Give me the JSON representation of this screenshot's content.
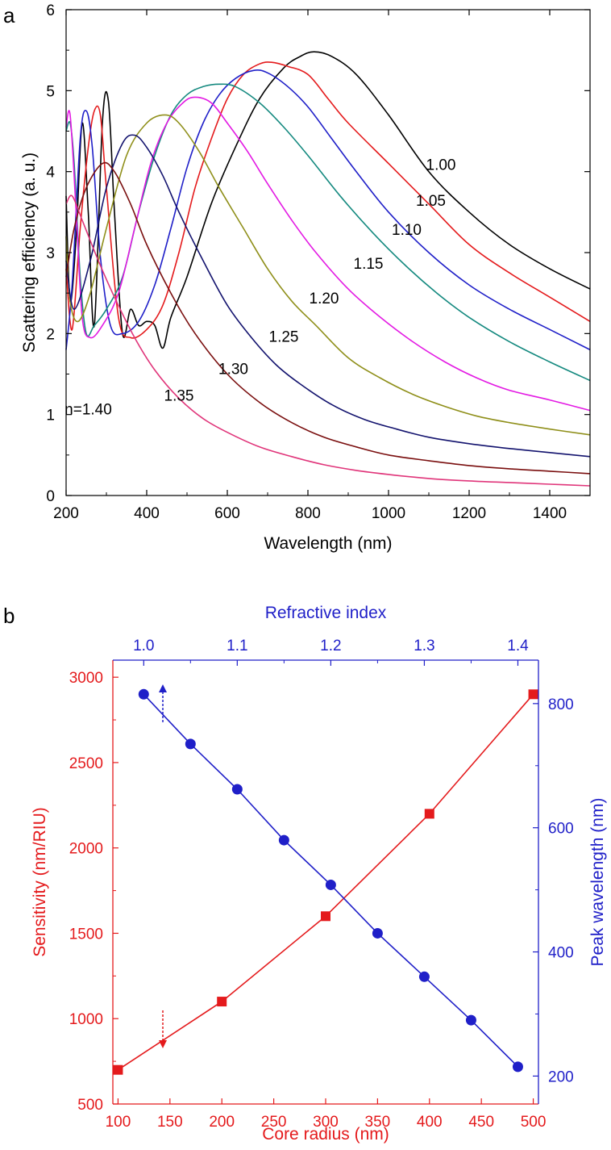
{
  "chart_data": [
    {
      "panel_label": "a",
      "type": "line",
      "title": "",
      "xlabel": "Wavelength (nm)",
      "ylabel": "Scattering efficiency (a. u.)",
      "xlim": [
        200,
        1500
      ],
      "ylim": [
        0,
        6
      ],
      "xticks": [
        200,
        400,
        600,
        800,
        1000,
        1200,
        1400
      ],
      "yticks": [
        0,
        1,
        2,
        3,
        4,
        5,
        6
      ],
      "grid": false,
      "series": [
        {
          "name": "1.00",
          "color": "#000000",
          "x": [
            200,
            210,
            225,
            240,
            255,
            270,
            290,
            305,
            320,
            340,
            360,
            380,
            400,
            420,
            440,
            460,
            500,
            560,
            620,
            680,
            740,
            780,
            815,
            860,
            920,
            1000,
            1100,
            1200,
            1300,
            1400,
            1500
          ],
          "y": [
            3.7,
            2.4,
            3.2,
            4.6,
            3.5,
            2.1,
            4.6,
            4.87,
            3.5,
            2.0,
            2.3,
            2.1,
            2.15,
            2.1,
            1.82,
            2.2,
            2.7,
            3.6,
            4.3,
            4.9,
            5.28,
            5.42,
            5.48,
            5.42,
            5.2,
            4.7,
            4.0,
            3.5,
            3.1,
            2.8,
            2.55
          ]
        },
        {
          "name": "1.05",
          "color": "#e41a1c",
          "x": [
            200,
            215,
            235,
            255,
            270,
            285,
            300,
            330,
            360,
            400,
            440,
            480,
            520,
            560,
            600,
            640,
            680,
            710,
            750,
            800,
            850,
            900,
            1000,
            1100,
            1200,
            1300,
            1400,
            1500
          ],
          "y": [
            2.8,
            2.05,
            3.3,
            4.3,
            4.75,
            4.7,
            3.8,
            2.2,
            1.95,
            2.05,
            2.35,
            3.0,
            3.8,
            4.4,
            4.9,
            5.2,
            5.33,
            5.35,
            5.3,
            5.2,
            4.9,
            4.6,
            4.1,
            3.6,
            3.1,
            2.75,
            2.45,
            2.15
          ]
        },
        {
          "name": "1.10",
          "color": "#1f1fc8",
          "x": [
            200,
            215,
            235,
            250,
            265,
            285,
            310,
            340,
            380,
            420,
            460,
            500,
            540,
            580,
            620,
            665,
            700,
            750,
            800,
            860,
            920,
            1000,
            1100,
            1200,
            1300,
            1400,
            1500
          ],
          "y": [
            1.8,
            2.6,
            4.4,
            4.75,
            4.3,
            2.95,
            2.1,
            2.0,
            2.15,
            2.6,
            3.3,
            4.05,
            4.6,
            4.95,
            5.15,
            5.25,
            5.22,
            5.05,
            4.8,
            4.4,
            4.0,
            3.5,
            3.0,
            2.6,
            2.3,
            2.05,
            1.8
          ]
        },
        {
          "name": "1.15",
          "color": "#14897f",
          "x": [
            200,
            210,
            220,
            235,
            250,
            270,
            300,
            340,
            380,
            420,
            460,
            500,
            540,
            580,
            620,
            680,
            740,
            800,
            880,
            960,
            1040,
            1120,
            1200,
            1300,
            1400,
            1500
          ],
          "y": [
            4.5,
            4.6,
            4.1,
            2.7,
            2.0,
            2.1,
            2.3,
            2.7,
            3.5,
            4.2,
            4.7,
            4.95,
            5.05,
            5.08,
            5.05,
            4.85,
            4.55,
            4.2,
            3.7,
            3.25,
            2.85,
            2.5,
            2.2,
            1.9,
            1.65,
            1.42
          ]
        },
        {
          "name": "1.20",
          "color": "#e31ae3",
          "x": [
            200,
            210,
            225,
            240,
            260,
            290,
            330,
            370,
            410,
            450,
            490,
            520,
            560,
            600,
            650,
            700,
            760,
            820,
            900,
            980,
            1060,
            1140,
            1220,
            1300,
            1400,
            1500
          ],
          "y": [
            4.55,
            4.7,
            3.5,
            2.2,
            1.95,
            2.1,
            2.5,
            3.3,
            4.1,
            4.6,
            4.85,
            4.92,
            4.85,
            4.6,
            4.25,
            3.85,
            3.4,
            3.0,
            2.55,
            2.2,
            1.9,
            1.65,
            1.45,
            1.3,
            1.18,
            1.05
          ]
        },
        {
          "name": "1.25",
          "color": "#8f8f1a",
          "x": [
            200,
            210,
            230,
            260,
            300,
            350,
            400,
            445,
            480,
            530,
            580,
            640,
            700,
            760,
            820,
            900,
            980,
            1060,
            1140,
            1220,
            1300,
            1400,
            1500
          ],
          "y": [
            3.2,
            2.4,
            2.15,
            2.5,
            3.3,
            4.2,
            4.6,
            4.7,
            4.6,
            4.25,
            3.8,
            3.3,
            2.8,
            2.4,
            2.1,
            1.7,
            1.45,
            1.25,
            1.1,
            0.98,
            0.9,
            0.82,
            0.75
          ]
        },
        {
          "name": "1.30",
          "color": "#13136e",
          "x": [
            200,
            220,
            260,
            300,
            340,
            370,
            400,
            440,
            480,
            540,
            600,
            660,
            720,
            780,
            860,
            940,
            1020,
            1100,
            1200,
            1300,
            1400,
            1500
          ],
          "y": [
            2.9,
            2.3,
            2.9,
            3.8,
            4.35,
            4.45,
            4.3,
            3.95,
            3.5,
            2.9,
            2.35,
            1.95,
            1.62,
            1.38,
            1.12,
            0.94,
            0.82,
            0.72,
            0.64,
            0.58,
            0.53,
            0.48
          ]
        },
        {
          "name": "1.35",
          "color": "#7a0f0f",
          "x": [
            200,
            220,
            250,
            290,
            320,
            360,
            400,
            460,
            520,
            600,
            680,
            760,
            840,
            920,
            1000,
            1100,
            1200,
            1300,
            1400,
            1500
          ],
          "y": [
            2.7,
            3.3,
            3.8,
            4.1,
            4.0,
            3.6,
            3.1,
            2.5,
            2.0,
            1.5,
            1.15,
            0.9,
            0.72,
            0.6,
            0.5,
            0.43,
            0.37,
            0.33,
            0.3,
            0.27
          ]
        },
        {
          "name": "n=1.40",
          "color": "#e0357a",
          "x": [
            200,
            215,
            240,
            280,
            320,
            370,
            420,
            480,
            540,
            600,
            680,
            760,
            840,
            920,
            1000,
            1100,
            1200,
            1300,
            1400,
            1500
          ],
          "y": [
            3.6,
            3.7,
            3.4,
            2.9,
            2.45,
            1.95,
            1.55,
            1.2,
            0.95,
            0.78,
            0.6,
            0.48,
            0.38,
            0.31,
            0.26,
            0.21,
            0.18,
            0.16,
            0.14,
            0.12
          ]
        }
      ],
      "annotations": [
        {
          "text": "1.00",
          "x": 1130,
          "y": 4.02
        },
        {
          "text": "1.05",
          "x": 1105,
          "y": 3.58
        },
        {
          "text": "1.10",
          "x": 1045,
          "y": 3.22
        },
        {
          "text": "1.15",
          "x": 950,
          "y": 2.8
        },
        {
          "text": "1.20",
          "x": 840,
          "y": 2.37
        },
        {
          "text": "1.25",
          "x": 740,
          "y": 1.9
        },
        {
          "text": "1.30",
          "x": 615,
          "y": 1.5
        },
        {
          "text": "1.35",
          "x": 480,
          "y": 1.17
        },
        {
          "text": "n=1.40",
          "x": 255,
          "y": 1.0
        }
      ]
    },
    {
      "panel_label": "b",
      "type": "line",
      "title": "",
      "xlabel": "Core radius (nm)",
      "x2label": "Refractive index",
      "ylabel": "Sensitivity (nm/RIU)",
      "y2label": "Peak wavelength (nm)",
      "xlim": [
        95,
        505
      ],
      "x2lim": [
        0.967,
        1.422
      ],
      "ylim": [
        500,
        3100
      ],
      "y2lim": [
        155,
        870
      ],
      "xticks": [
        100,
        150,
        200,
        250,
        300,
        350,
        400,
        450,
        500
      ],
      "x2ticks": [
        "1.0",
        "1.1",
        "1.2",
        "1.3",
        "1.4"
      ],
      "yticks": [
        500,
        1000,
        1500,
        2000,
        2500,
        3000
      ],
      "y2ticks": [
        200,
        400,
        600,
        800
      ],
      "grid": false,
      "series": [
        {
          "name": "Sensitivity",
          "axis": "left-bottom",
          "color": "#e41a1c",
          "marker": "square",
          "x": [
            100,
            200,
            300,
            400,
            500
          ],
          "y": [
            700,
            1100,
            1600,
            2200,
            2900
          ]
        },
        {
          "name": "Peak wavelength",
          "axis": "right-top",
          "color": "#1f1fc8",
          "marker": "circle",
          "x": [
            1.0,
            1.05,
            1.1,
            1.15,
            1.2,
            1.25,
            1.3,
            1.35,
            1.4
          ],
          "y": [
            815,
            735,
            662,
            580,
            508,
            430,
            360,
            290,
            215
          ]
        }
      ]
    }
  ]
}
